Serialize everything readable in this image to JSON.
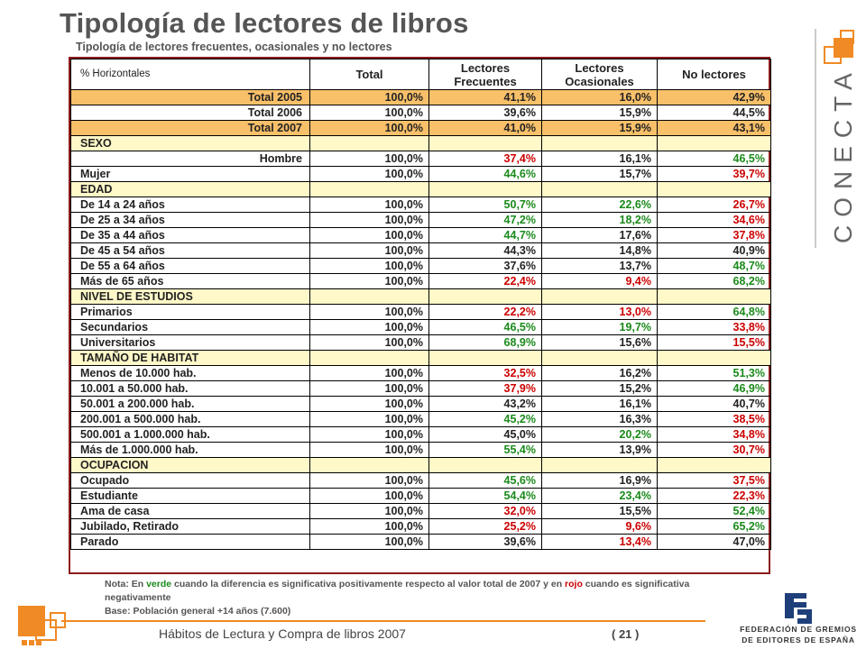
{
  "page": {
    "title": "Tipología de lectores de libros",
    "subtitle": "Tipología de lectores frecuentes, ocasionales y no lectores"
  },
  "table": {
    "headers": [
      "% Horizontales",
      "Total",
      "Lectores Frecuentes",
      "Lectores Ocasionales",
      "No lectores"
    ],
    "rows": [
      {
        "label": "Total 2005",
        "kind": "total",
        "values": [
          "100,0%",
          "41,1%",
          "16,0%",
          "42,9%"
        ],
        "colors": [
          "",
          "",
          "",
          ""
        ]
      },
      {
        "label": "Total 2006",
        "kind": "plain-right",
        "values": [
          "100,0%",
          "39,6%",
          "15,9%",
          "44,5%"
        ],
        "colors": [
          "",
          "",
          "",
          ""
        ]
      },
      {
        "label": "Total 2007",
        "kind": "total",
        "values": [
          "100,0%",
          "41,0%",
          "15,9%",
          "43,1%"
        ],
        "colors": [
          "",
          "",
          "",
          ""
        ]
      },
      {
        "label": "SEXO",
        "kind": "section",
        "values": [
          "",
          "",
          "",
          ""
        ],
        "colors": [
          "",
          "",
          "",
          ""
        ]
      },
      {
        "label": "Hombre",
        "kind": "plain-right",
        "values": [
          "100,0%",
          "37,4%",
          "16,1%",
          "46,5%"
        ],
        "colors": [
          "",
          "red",
          "",
          "green"
        ]
      },
      {
        "label": "Mujer",
        "kind": "plain",
        "values": [
          "100,0%",
          "44,6%",
          "15,7%",
          "39,7%"
        ],
        "colors": [
          "",
          "green",
          "",
          "red"
        ]
      },
      {
        "label": "EDAD",
        "kind": "section",
        "values": [
          "",
          "",
          "",
          ""
        ],
        "colors": [
          "",
          "",
          "",
          ""
        ]
      },
      {
        "label": "De 14 a 24 años",
        "kind": "plain",
        "values": [
          "100,0%",
          "50,7%",
          "22,6%",
          "26,7%"
        ],
        "colors": [
          "",
          "green",
          "green",
          "red"
        ]
      },
      {
        "label": "De 25 a 34 años",
        "kind": "plain",
        "values": [
          "100,0%",
          "47,2%",
          "18,2%",
          "34,6%"
        ],
        "colors": [
          "",
          "green",
          "green",
          "red"
        ]
      },
      {
        "label": "De 35 a 44 años",
        "kind": "plain",
        "values": [
          "100,0%",
          "44,7%",
          "17,6%",
          "37,8%"
        ],
        "colors": [
          "",
          "green",
          "",
          "red"
        ]
      },
      {
        "label": "De 45 a 54 años",
        "kind": "plain",
        "values": [
          "100,0%",
          "44,3%",
          "14,8%",
          "40,9%"
        ],
        "colors": [
          "",
          "",
          "",
          ""
        ]
      },
      {
        "label": "De 55 a 64 años",
        "kind": "plain",
        "values": [
          "100,0%",
          "37,6%",
          "13,7%",
          "48,7%"
        ],
        "colors": [
          "",
          "",
          "",
          "green"
        ]
      },
      {
        "label": "Más de 65 años",
        "kind": "plain",
        "values": [
          "100,0%",
          "22,4%",
          "9,4%",
          "68,2%"
        ],
        "colors": [
          "",
          "red",
          "red",
          "green"
        ]
      },
      {
        "label": "NIVEL DE ESTUDIOS",
        "kind": "section",
        "values": [
          "",
          "",
          "",
          ""
        ],
        "colors": [
          "",
          "",
          "",
          ""
        ]
      },
      {
        "label": "Primarios",
        "kind": "plain",
        "values": [
          "100,0%",
          "22,2%",
          "13,0%",
          "64,8%"
        ],
        "colors": [
          "",
          "red",
          "red",
          "green"
        ]
      },
      {
        "label": "Secundarios",
        "kind": "plain",
        "values": [
          "100,0%",
          "46,5%",
          "19,7%",
          "33,8%"
        ],
        "colors": [
          "",
          "green",
          "green",
          "red"
        ]
      },
      {
        "label": "Universitarios",
        "kind": "plain",
        "values": [
          "100,0%",
          "68,9%",
          "15,6%",
          "15,5%"
        ],
        "colors": [
          "",
          "green",
          "",
          "red"
        ]
      },
      {
        "label": "TAMAÑO DE HABITAT",
        "kind": "section",
        "values": [
          "",
          "",
          "",
          ""
        ],
        "colors": [
          "",
          "",
          "",
          ""
        ]
      },
      {
        "label": "Menos de 10.000 hab.",
        "kind": "plain",
        "values": [
          "100,0%",
          "32,5%",
          "16,2%",
          "51,3%"
        ],
        "colors": [
          "",
          "red",
          "",
          "green"
        ]
      },
      {
        "label": "10.001 a 50.000 hab.",
        "kind": "plain",
        "values": [
          "100,0%",
          "37,9%",
          "15,2%",
          "46,9%"
        ],
        "colors": [
          "",
          "red",
          "",
          "green"
        ]
      },
      {
        "label": "50.001 a 200.000 hab.",
        "kind": "plain",
        "values": [
          "100,0%",
          "43,2%",
          "16,1%",
          "40,7%"
        ],
        "colors": [
          "",
          "",
          "",
          ""
        ]
      },
      {
        "label": "200.001 a 500.000 hab.",
        "kind": "plain",
        "values": [
          "100,0%",
          "45,2%",
          "16,3%",
          "38,5%"
        ],
        "colors": [
          "",
          "green",
          "",
          "red"
        ]
      },
      {
        "label": "500.001 a 1.000.000 hab.",
        "kind": "plain",
        "values": [
          "100,0%",
          "45,0%",
          "20,2%",
          "34,8%"
        ],
        "colors": [
          "",
          "",
          "green",
          "red"
        ]
      },
      {
        "label": "Más de 1.000.000 hab.",
        "kind": "plain",
        "values": [
          "100,0%",
          "55,4%",
          "13,9%",
          "30,7%"
        ],
        "colors": [
          "",
          "green",
          "",
          "red"
        ]
      },
      {
        "label": "OCUPACION",
        "kind": "section",
        "values": [
          "",
          "",
          "",
          ""
        ],
        "colors": [
          "",
          "",
          "",
          ""
        ]
      },
      {
        "label": "Ocupado",
        "kind": "plain",
        "values": [
          "100,0%",
          "45,6%",
          "16,9%",
          "37,5%"
        ],
        "colors": [
          "",
          "green",
          "",
          "red"
        ]
      },
      {
        "label": "Estudiante",
        "kind": "plain",
        "values": [
          "100,0%",
          "54,4%",
          "23,4%",
          "22,3%"
        ],
        "colors": [
          "",
          "green",
          "green",
          "red"
        ]
      },
      {
        "label": "Ama de casa",
        "kind": "plain",
        "values": [
          "100,0%",
          "32,0%",
          "15,5%",
          "52,4%"
        ],
        "colors": [
          "",
          "red",
          "",
          "green"
        ]
      },
      {
        "label": "Jubilado, Retirado",
        "kind": "plain",
        "values": [
          "100,0%",
          "25,2%",
          "9,6%",
          "65,2%"
        ],
        "colors": [
          "",
          "red",
          "red",
          "green"
        ]
      },
      {
        "label": "Parado",
        "kind": "plain",
        "values": [
          "100,0%",
          "39,6%",
          "13,4%",
          "47,0%"
        ],
        "colors": [
          "",
          "",
          "red",
          ""
        ]
      }
    ]
  },
  "note": {
    "prefix": "Nota: En ",
    "green_word": "verde",
    "middle": " cuando la diferencia es significativa positivamente respecto al valor total de 2007 y en ",
    "red_word": "rojo",
    "suffix": " cuando es significativa negativamente",
    "base": "Base: Población general +14 años (7.600)"
  },
  "footer": {
    "text": "Hábitos de Lectura y Compra de libros 2007",
    "page": "( 21 )"
  },
  "logos": {
    "conecta": "CONECTA",
    "federation_line1": "FEDERACIÓN DE GREMIOS",
    "federation_line2": "DE EDITORES DE ESPAÑA"
  },
  "colors": {
    "total_row": "#F9C06A",
    "section_row": "#FFF8C8",
    "positive": "#1B8A1B",
    "negative": "#CC0000",
    "frame": "#8B1A1A",
    "accent_orange": "#F08A24"
  }
}
